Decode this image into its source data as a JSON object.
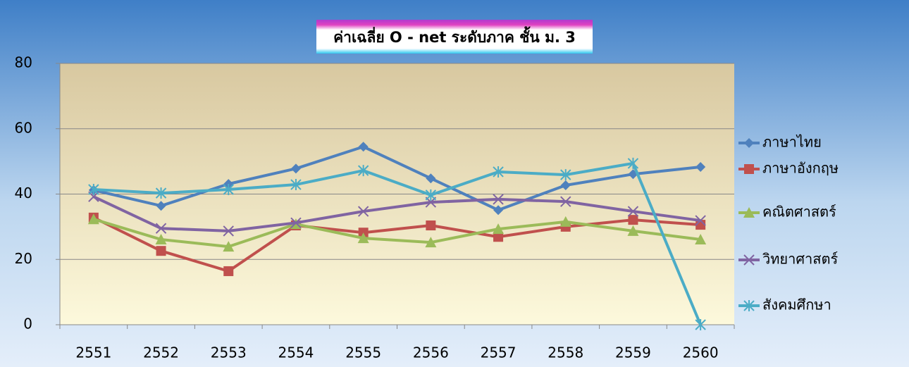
{
  "chart_data": {
    "type": "line",
    "title": "ค่าเฉลี่ย O - net ระดับภาค ชั้น ม. 3",
    "categories": [
      "2551",
      "2552",
      "2553",
      "2554",
      "2555",
      "2556",
      "2557",
      "2558",
      "2559",
      "2560"
    ],
    "ylim": [
      0,
      80
    ],
    "yticks": [
      0,
      20,
      40,
      60,
      80
    ],
    "grid": true,
    "legend": "right",
    "series": [
      {
        "name": "ภาษาไทย",
        "color": "#4f81bd",
        "marker": "diamond",
        "values": [
          41.2,
          36.4,
          43.1,
          47.8,
          54.5,
          44.8,
          35.1,
          42.7,
          46.1,
          48.3
        ]
      },
      {
        "name": "ภาษาอังกฤษ",
        "color": "#c0504d",
        "marker": "square",
        "values": [
          32.8,
          22.6,
          16.4,
          30.4,
          28.2,
          30.4,
          26.9,
          30.0,
          32.1,
          30.6
        ]
      },
      {
        "name": "คณิตศาสตร์",
        "color": "#9bbb59",
        "marker": "triangle",
        "values": [
          32.3,
          26.1,
          23.9,
          30.8,
          26.5,
          25.2,
          29.3,
          31.5,
          28.7,
          26.1
        ]
      },
      {
        "name": "วิทยาศาสตร์",
        "color": "#8064a2",
        "marker": "x",
        "values": [
          39.2,
          29.5,
          28.7,
          31.2,
          34.7,
          37.5,
          38.4,
          37.7,
          34.7,
          31.9
        ]
      },
      {
        "name": "สังคมศึกษา",
        "color": "#4bacc6",
        "marker": "star",
        "values": [
          41.4,
          40.3,
          41.4,
          42.9,
          47.2,
          39.7,
          46.8,
          45.9,
          49.4,
          0
        ]
      }
    ]
  }
}
